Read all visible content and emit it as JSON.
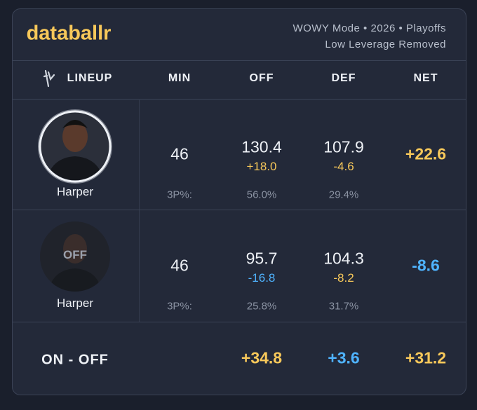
{
  "header": {
    "logo": "databallr",
    "mode_line": "WOWY Mode • 2026 • Playoffs",
    "filter_line": "Low Leverage Removed"
  },
  "columns": [
    "LINEUP",
    "MIN",
    "OFF",
    "DEF",
    "NET"
  ],
  "rows": [
    {
      "name": "Harper",
      "min": "46",
      "off": "130.4",
      "off_diff": "+18.0",
      "def": "107.9",
      "def_diff": "-4.6",
      "net": "+22.6",
      "three_label": "3P%:",
      "three_off": "56.0%",
      "three_def": "29.4%"
    },
    {
      "overlay": "OFF",
      "name": "Harper",
      "min": "46",
      "off": "95.7",
      "off_diff": "-16.8",
      "def": "104.3",
      "def_diff": "-8.2",
      "net": "-8.6",
      "three_label": "3P%:",
      "three_off": "25.8%",
      "three_def": "31.7%"
    }
  ],
  "footer": {
    "label": "ON - OFF",
    "off": "+34.8",
    "def": "+3.6",
    "net": "+31.2"
  }
}
